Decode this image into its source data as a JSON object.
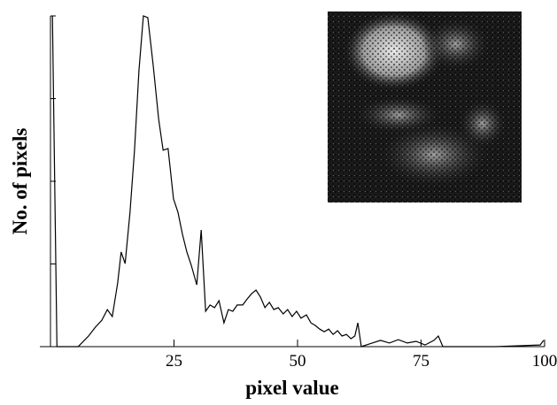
{
  "chart_data": {
    "type": "line",
    "x_label": "pixel value",
    "y_label": "No. of pixels",
    "x": [
      0.4,
      1.3,
      5.6,
      7.7,
      9.1,
      10.4,
      11.5,
      12.5,
      13.6,
      14.3,
      15.1,
      16.1,
      17.0,
      17.9,
      18.8,
      19.7,
      20.8,
      21.9,
      22.8,
      23.8,
      24.9,
      25.8,
      26.7,
      27.6,
      28.5,
      29.6,
      30.5,
      31.4,
      32.3,
      33.2,
      34.1,
      35.1,
      36.0,
      36.9,
      37.8,
      38.9,
      39.8,
      40.7,
      41.6,
      42.5,
      43.4,
      44.3,
      45.2,
      46.1,
      47.1,
      48.0,
      48.9,
      49.8,
      50.7,
      51.8,
      52.7,
      53.6,
      54.5,
      55.4,
      56.3,
      57.2,
      58.1,
      59.0,
      59.9,
      60.8,
      61.6,
      62.2,
      62.9,
      65.1,
      66.8,
      68.6,
      70.4,
      72.2,
      74.0,
      75.8,
      77.6,
      78.5,
      79.4,
      90.1,
      99.1,
      99.8
    ],
    "series": [
      {
        "color": "#000000",
        "values": [
          100,
          0,
          0,
          3.2,
          5.9,
          8.0,
          11.2,
          9.1,
          19.3,
          28.6,
          25.1,
          40.6,
          59.4,
          83.4,
          100,
          99.5,
          84.8,
          68.7,
          59.4,
          59.9,
          44.7,
          40.6,
          34.0,
          28.6,
          24.6,
          18.7,
          35.3,
          10.7,
          12.6,
          11.8,
          13.9,
          7.2,
          11.2,
          10.7,
          12.6,
          12.6,
          14.4,
          16.0,
          17.1,
          15.0,
          11.8,
          13.4,
          11.2,
          11.8,
          9.9,
          11.2,
          9.1,
          10.7,
          8.6,
          9.6,
          7.2,
          6.4,
          5.3,
          4.5,
          5.3,
          3.7,
          4.8,
          3.2,
          3.7,
          2.4,
          3.2,
          7.2,
          0,
          1.1,
          1.9,
          1.1,
          2.1,
          1.1,
          1.6,
          0.5,
          1.9,
          3.2,
          0,
          0,
          0.5,
          1.9
        ]
      }
    ],
    "xlim": [
      0,
      100
    ],
    "xticks": [
      25,
      50,
      75,
      100
    ],
    "ylim": [
      0,
      100
    ],
    "yticks": [
      0,
      25,
      50,
      75,
      100
    ]
  }
}
